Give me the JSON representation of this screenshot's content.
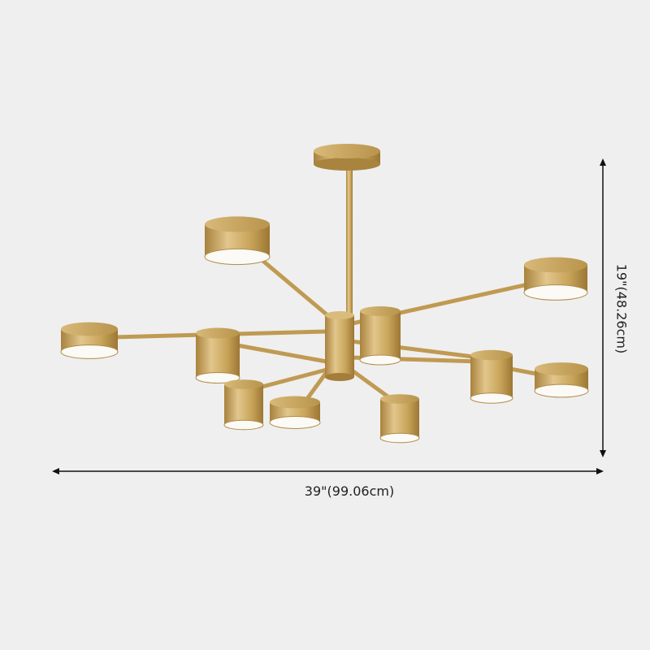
{
  "product": {
    "finish_color": "#c9a55a",
    "light_color": "#fbfaf6",
    "background_color": "#efefef"
  },
  "dimensions": {
    "width_label": "39\"(99.06cm)",
    "height_label": "19\"(48.26cm)"
  }
}
